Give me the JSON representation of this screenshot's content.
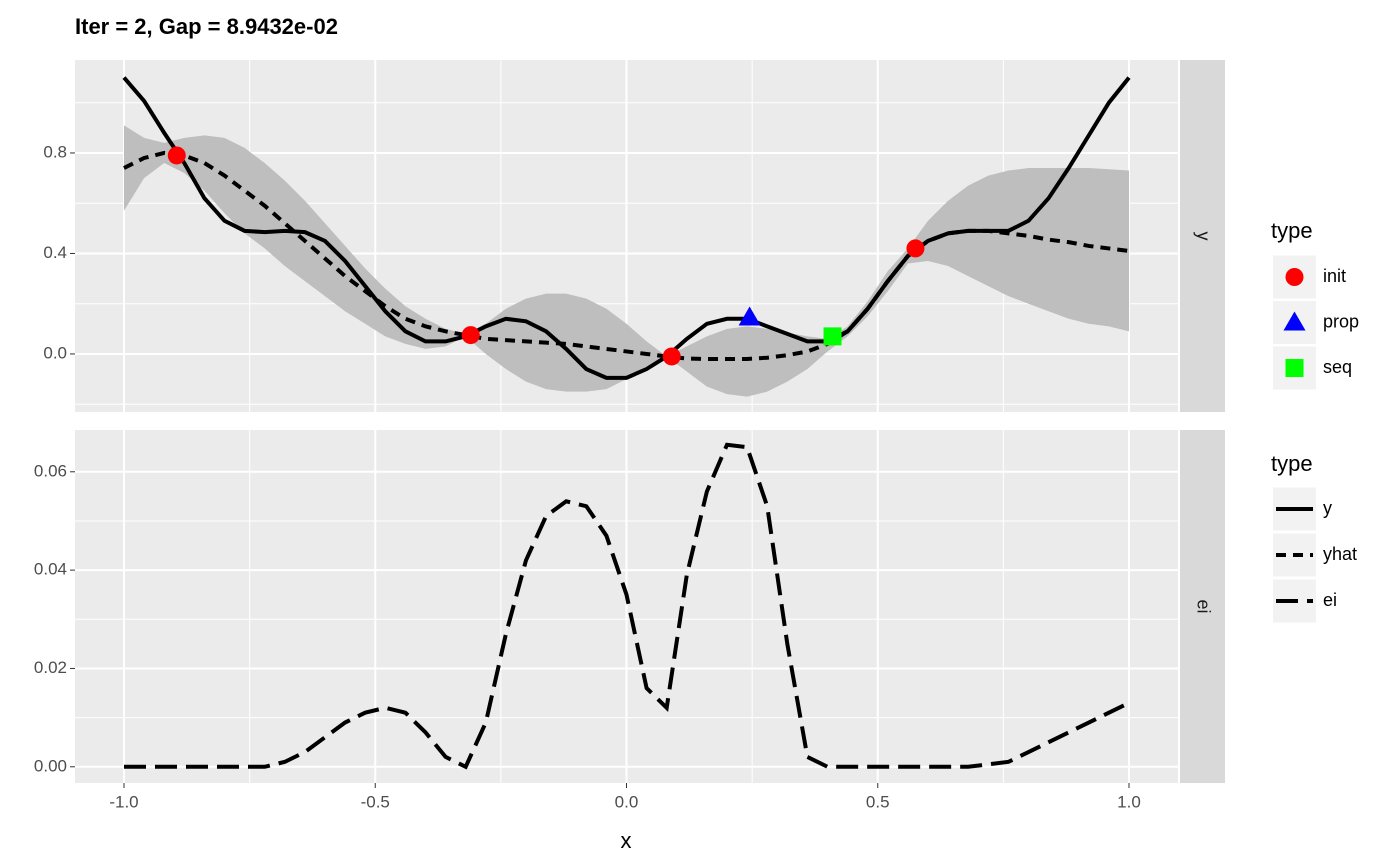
{
  "chart_data": [
    {
      "type": "line",
      "title": "Iter = 2, Gap = 8.9432e-02",
      "facet": "y",
      "legend_title": "type",
      "xlim": [
        -1.0975,
        1.0975
      ],
      "ylim": [
        -0.231,
        1.17
      ],
      "yticks": [
        {
          "value": 0,
          "label": "0.0"
        },
        0.4,
        0.8
      ],
      "grid": true,
      "x": [
        -1,
        -0.96,
        -0.92,
        -0.88,
        -0.84,
        -0.8,
        -0.76,
        -0.72,
        -0.68,
        -0.64,
        -0.6,
        -0.56,
        -0.52,
        -0.48,
        -0.44,
        -0.4,
        -0.36,
        -0.32,
        -0.28,
        -0.24,
        -0.2,
        -0.16,
        -0.12,
        -0.08,
        -0.04,
        0,
        0.04,
        0.08,
        0.12,
        0.16,
        0.2,
        0.24,
        0.28,
        0.32,
        0.36,
        0.4,
        0.44,
        0.48,
        0.52,
        0.56,
        0.6,
        0.64,
        0.68,
        0.72,
        0.76,
        0.8,
        0.84,
        0.88,
        0.92,
        0.96,
        1
      ],
      "band": {
        "color": "#bebebe",
        "upper": [
          0.91,
          0.86,
          0.84,
          0.86,
          0.87,
          0.86,
          0.82,
          0.76,
          0.69,
          0.61,
          0.52,
          0.43,
          0.34,
          0.26,
          0.19,
          0.14,
          0.1,
          0.08,
          0.12,
          0.18,
          0.22,
          0.24,
          0.24,
          0.22,
          0.18,
          0.12,
          0.05,
          -0.01,
          0.03,
          0.07,
          0.1,
          0.11,
          0.1,
          0.085,
          0.07,
          0.06,
          0.11,
          0.21,
          0.33,
          0.42,
          0.53,
          0.61,
          0.67,
          0.71,
          0.73,
          0.74,
          0.74,
          0.74,
          0.74,
          0.735,
          0.73
        ],
        "lower": [
          0.57,
          0.7,
          0.76,
          0.72,
          0.65,
          0.56,
          0.48,
          0.42,
          0.35,
          0.29,
          0.23,
          0.17,
          0.12,
          0.07,
          0.04,
          0.02,
          0.03,
          0.07,
          0.0,
          -0.06,
          -0.11,
          -0.14,
          -0.15,
          -0.15,
          -0.14,
          -0.1,
          -0.05,
          -0.01,
          -0.07,
          -0.13,
          -0.16,
          -0.17,
          -0.15,
          -0.11,
          -0.06,
          0.01,
          0.07,
          0.15,
          0.25,
          0.36,
          0.37,
          0.35,
          0.31,
          0.27,
          0.23,
          0.2,
          0.17,
          0.14,
          0.12,
          0.11,
          0.09
        ]
      },
      "series": [
        {
          "name": "y",
          "color": "#000000",
          "linetype": "solid",
          "values": [
            1.1,
            1.007,
            0.88,
            0.76,
            0.62,
            0.53,
            0.49,
            0.485,
            0.49,
            0.485,
            0.45,
            0.37,
            0.27,
            0.17,
            0.09,
            0.05,
            0.05,
            0.07,
            0.11,
            0.14,
            0.13,
            0.09,
            0.02,
            -0.06,
            -0.095,
            -0.095,
            -0.06,
            -0.01,
            0.06,
            0.12,
            0.14,
            0.14,
            0.11,
            0.08,
            0.05,
            0.05,
            0.09,
            0.18,
            0.29,
            0.39,
            0.45,
            0.48,
            0.49,
            0.49,
            0.49,
            0.53,
            0.62,
            0.74,
            0.87,
            1.0,
            1.1
          ]
        },
        {
          "name": "yhat",
          "color": "#000000",
          "linetype": "dashed",
          "values": [
            0.74,
            0.78,
            0.8,
            0.79,
            0.76,
            0.71,
            0.65,
            0.59,
            0.52,
            0.45,
            0.38,
            0.31,
            0.25,
            0.19,
            0.14,
            0.11,
            0.09,
            0.075,
            0.06,
            0.055,
            0.05,
            0.045,
            0.04,
            0.03,
            0.02,
            0.01,
            0.0,
            -0.01,
            -0.018,
            -0.02,
            -0.02,
            -0.02,
            -0.015,
            -0.005,
            0.01,
            0.04,
            0.09,
            0.18,
            0.29,
            0.39,
            0.45,
            0.48,
            0.49,
            0.49,
            0.48,
            0.47,
            0.455,
            0.445,
            0.43,
            0.42,
            0.41
          ]
        }
      ],
      "points": [
        {
          "name": "init",
          "color": "#ff0000",
          "shape": "circle",
          "x": [
            -0.895,
            -0.31,
            0.09,
            0.575
          ],
          "values": [
            0.79,
            0.075,
            -0.01,
            0.42
          ]
        },
        {
          "name": "prop",
          "color": "#0000ff",
          "shape": "triangle",
          "x": [
            0.245
          ],
          "values": [
            0.145
          ]
        },
        {
          "name": "seq",
          "color": "#00ff00",
          "shape": "square",
          "x": [
            0.41
          ],
          "values": [
            0.07
          ]
        }
      ]
    },
    {
      "type": "line",
      "facet": "ei",
      "legend_title": "type",
      "xlabel": "x",
      "xlim": [
        -1.0975,
        1.0975
      ],
      "ylim": [
        -0.0033,
        0.0685
      ],
      "xticks": [
        {
          "value": -1,
          "label": "-1.0"
        },
        -0.5,
        {
          "value": 0,
          "label": "0.0"
        },
        0.5,
        {
          "value": 1,
          "label": "1.0"
        }
      ],
      "yticks": [
        {
          "value": 0,
          "label": "0.00"
        },
        {
          "value": 0.02,
          "label": "0.02"
        },
        {
          "value": 0.04,
          "label": "0.04"
        },
        {
          "value": 0.06,
          "label": "0.06"
        }
      ],
      "grid": true,
      "x": [
        -1,
        -0.96,
        -0.92,
        -0.88,
        -0.84,
        -0.8,
        -0.76,
        -0.72,
        -0.68,
        -0.64,
        -0.6,
        -0.56,
        -0.52,
        -0.48,
        -0.44,
        -0.4,
        -0.36,
        -0.32,
        -0.28,
        -0.24,
        -0.2,
        -0.16,
        -0.12,
        -0.08,
        -0.04,
        0,
        0.04,
        0.08,
        0.12,
        0.16,
        0.2,
        0.24,
        0.28,
        0.32,
        0.36,
        0.4,
        0.44,
        0.48,
        0.52,
        0.56,
        0.6,
        0.64,
        0.68,
        0.72,
        0.76,
        0.8,
        0.84,
        0.88,
        0.92,
        0.96,
        1
      ],
      "series": [
        {
          "name": "ei",
          "color": "#000000",
          "linetype": "longdash",
          "values": [
            0,
            0,
            0,
            0,
            0,
            0,
            0,
            0,
            0.001,
            0.003,
            0.006,
            0.009,
            0.011,
            0.012,
            0.011,
            0.007,
            0.002,
            0.0,
            0.009,
            0.027,
            0.042,
            0.051,
            0.054,
            0.053,
            0.047,
            0.035,
            0.016,
            0.012,
            0.039,
            0.056,
            0.0655,
            0.065,
            0.053,
            0.025,
            0.002,
            0,
            0,
            0,
            0,
            0,
            0,
            0,
            0,
            0.0005,
            0.001,
            0.003,
            0.005,
            0.007,
            0.009,
            0.011,
            0.013
          ]
        }
      ]
    }
  ]
}
